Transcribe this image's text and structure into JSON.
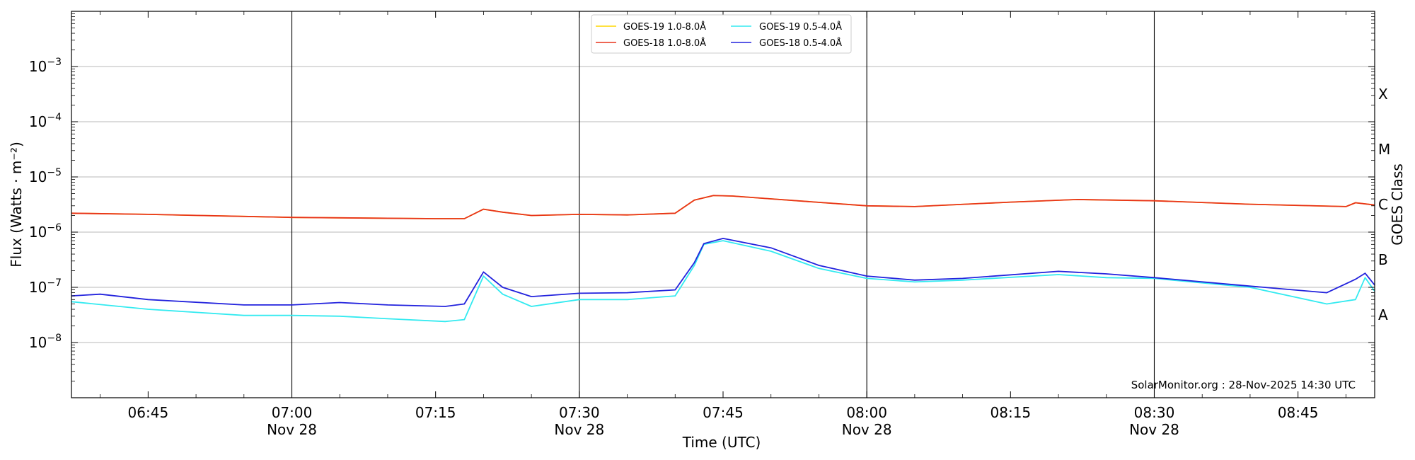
{
  "chart_data": {
    "type": "line",
    "xlabel": "Time (UTC)",
    "ylabel": "Flux (Watts · m⁻²)",
    "ylabel_right": "GOES Class",
    "y_scale": "log",
    "ylim": [
      1e-09,
      0.01
    ],
    "xlim": [
      "06:37",
      "08:53"
    ],
    "grid": "horizontal major grid",
    "y_ticks": [
      {
        "value": 1e-08,
        "base": "10",
        "exp": "−8"
      },
      {
        "value": 1e-07,
        "base": "10",
        "exp": "−7"
      },
      {
        "value": 1e-06,
        "base": "10",
        "exp": "−6"
      },
      {
        "value": 1e-05,
        "base": "10",
        "exp": "−5"
      },
      {
        "value": 0.0001,
        "base": "10",
        "exp": "−4"
      },
      {
        "value": 0.001,
        "base": "10",
        "exp": "−3"
      }
    ],
    "x_ticks": [
      {
        "time": "06:45",
        "label": "06:45",
        "date": ""
      },
      {
        "time": "07:00",
        "label": "07:00",
        "date": "Nov 28"
      },
      {
        "time": "07:15",
        "label": "07:15",
        "date": ""
      },
      {
        "time": "07:30",
        "label": "07:30",
        "date": "Nov 28"
      },
      {
        "time": "07:45",
        "label": "07:45",
        "date": ""
      },
      {
        "time": "08:00",
        "label": "08:00",
        "date": "Nov 28"
      },
      {
        "time": "08:15",
        "label": "08:15",
        "date": ""
      },
      {
        "time": "08:30",
        "label": "08:30",
        "date": "Nov 28"
      },
      {
        "time": "08:45",
        "label": "08:45",
        "date": ""
      }
    ],
    "vlines": [
      "07:00",
      "07:30",
      "08:00",
      "08:30"
    ],
    "class_labels": [
      {
        "label": "A",
        "value": 3.16e-08
      },
      {
        "label": "B",
        "value": 3.16e-07
      },
      {
        "label": "C",
        "value": 3.16e-06
      },
      {
        "label": "M",
        "value": 3.16e-05
      },
      {
        "label": "X",
        "value": 0.000316
      }
    ],
    "legend": {
      "position": "top-center",
      "columns": 2
    },
    "series": [
      {
        "name": "GOES-19 1.0-8.0Å",
        "color": "#ffd700",
        "x": [
          "06:37",
          "06:45",
          "07:00",
          "07:15",
          "07:18",
          "07:20",
          "07:22",
          "07:25",
          "07:30",
          "07:35",
          "07:40",
          "07:42",
          "07:44",
          "07:46",
          "07:50",
          "08:00",
          "08:05",
          "08:15",
          "08:22",
          "08:30",
          "08:40",
          "08:50",
          "08:51",
          "08:53"
        ],
        "y": [
          2.2e-06,
          2.1e-06,
          1.85e-06,
          1.75e-06,
          1.75e-06,
          2.6e-06,
          2.3e-06,
          2e-06,
          2.1e-06,
          2.05e-06,
          2.2e-06,
          3.8e-06,
          4.6e-06,
          4.5e-06,
          4e-06,
          3e-06,
          2.9e-06,
          3.5e-06,
          3.9e-06,
          3.7e-06,
          3.2e-06,
          2.9e-06,
          3.4e-06,
          3.1e-06
        ]
      },
      {
        "name": "GOES-18 1.0-8.0Å",
        "color": "#e8331b",
        "x": [
          "06:37",
          "06:45",
          "07:00",
          "07:15",
          "07:18",
          "07:20",
          "07:22",
          "07:25",
          "07:30",
          "07:35",
          "07:40",
          "07:42",
          "07:44",
          "07:46",
          "07:50",
          "08:00",
          "08:05",
          "08:15",
          "08:22",
          "08:30",
          "08:40",
          "08:50",
          "08:51",
          "08:53"
        ],
        "y": [
          2.2e-06,
          2.1e-06,
          1.85e-06,
          1.75e-06,
          1.75e-06,
          2.6e-06,
          2.3e-06,
          2e-06,
          2.1e-06,
          2.05e-06,
          2.2e-06,
          3.8e-06,
          4.6e-06,
          4.5e-06,
          4e-06,
          3e-06,
          2.9e-06,
          3.5e-06,
          3.9e-06,
          3.7e-06,
          3.2e-06,
          2.9e-06,
          3.4e-06,
          3.1e-06
        ]
      },
      {
        "name": "GOES-19 0.5-4.0Å",
        "color": "#33eaf0",
        "x": [
          "06:37",
          "06:45",
          "06:55",
          "07:00",
          "07:05",
          "07:10",
          "07:16",
          "07:18",
          "07:20",
          "07:22",
          "07:25",
          "07:30",
          "07:35",
          "07:40",
          "07:42",
          "07:43",
          "07:45",
          "07:50",
          "07:55",
          "08:00",
          "08:05",
          "08:10",
          "08:20",
          "08:25",
          "08:30",
          "08:40",
          "08:48",
          "08:51",
          "08:52",
          "08:53"
        ],
        "y": [
          5.5e-08,
          4e-08,
          3.1e-08,
          3.1e-08,
          3e-08,
          2.7e-08,
          2.4e-08,
          2.6e-08,
          1.6e-07,
          7.5e-08,
          4.5e-08,
          6e-08,
          6e-08,
          7e-08,
          2.5e-07,
          6e-07,
          7e-07,
          4.5e-07,
          2.2e-07,
          1.45e-07,
          1.25e-07,
          1.35e-07,
          1.7e-07,
          1.5e-07,
          1.45e-07,
          1e-07,
          5e-08,
          6e-08,
          1.5e-07,
          8.5e-08
        ]
      },
      {
        "name": "GOES-18 0.5-4.0Å",
        "color": "#2222dd",
        "x": [
          "06:37",
          "06:40",
          "06:45",
          "06:55",
          "07:00",
          "07:05",
          "07:10",
          "07:16",
          "07:18",
          "07:20",
          "07:22",
          "07:25",
          "07:30",
          "07:35",
          "07:40",
          "07:42",
          "07:43",
          "07:45",
          "07:50",
          "07:55",
          "08:00",
          "08:05",
          "08:10",
          "08:20",
          "08:25",
          "08:30",
          "08:40",
          "08:48",
          "08:51",
          "08:52",
          "08:53"
        ],
        "y": [
          7e-08,
          7.5e-08,
          6e-08,
          4.8e-08,
          4.8e-08,
          5.3e-08,
          4.8e-08,
          4.5e-08,
          5e-08,
          1.9e-07,
          1e-07,
          6.8e-08,
          7.8e-08,
          8e-08,
          9e-08,
          2.8e-07,
          6.2e-07,
          7.7e-07,
          5.2e-07,
          2.5e-07,
          1.6e-07,
          1.35e-07,
          1.45e-07,
          1.95e-07,
          1.75e-07,
          1.5e-07,
          1.05e-07,
          8e-08,
          1.4e-07,
          1.8e-07,
          1.1e-07
        ]
      }
    ]
  },
  "credit": "SolarMonitor.org : 28-Nov-2025 14:30 UTC"
}
